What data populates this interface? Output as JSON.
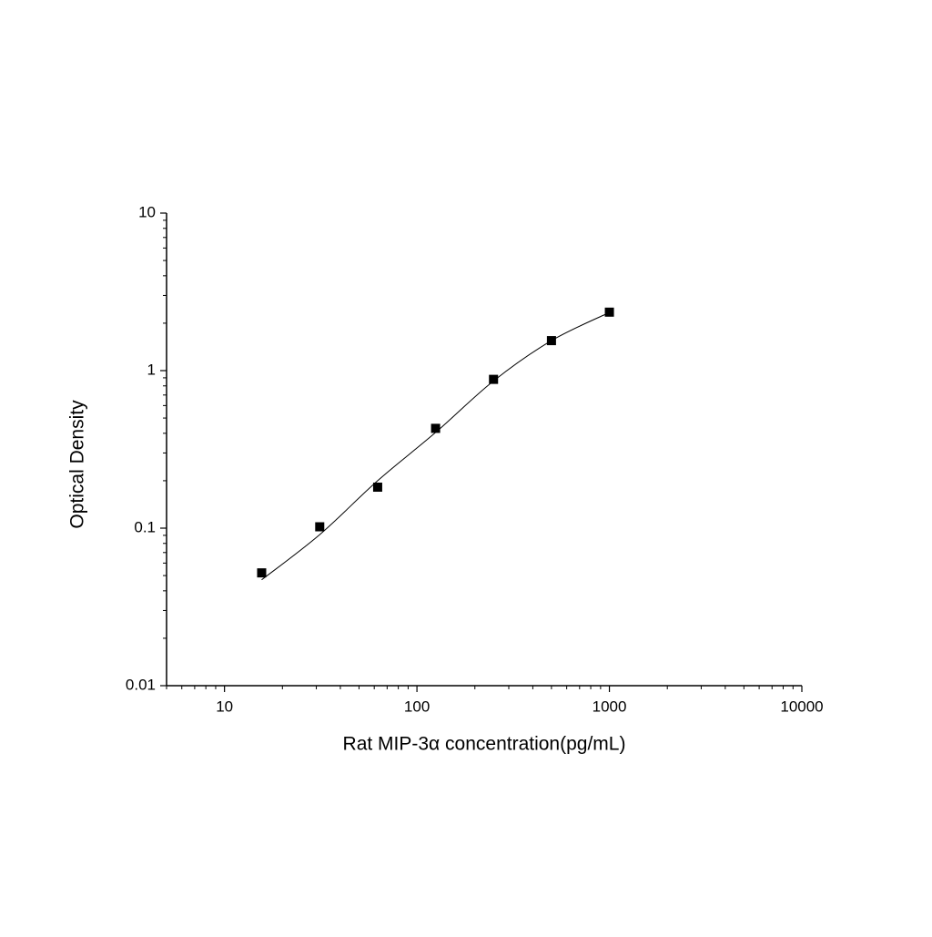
{
  "chart_data": {
    "type": "scatter",
    "xlabel": "Rat MIP-3α  concentration(pg/mL)",
    "ylabel": "Optical Density",
    "xscale": "log",
    "yscale": "log",
    "xlim": [
      5,
      10000
    ],
    "ylim": [
      0.01,
      10
    ],
    "xticks": [
      10,
      100,
      1000,
      10000
    ],
    "yticks": [
      0.01,
      0.1,
      1,
      10
    ],
    "xminorticks": [
      5,
      6,
      7,
      8,
      9,
      20,
      30,
      40,
      50,
      60,
      70,
      80,
      90,
      200,
      300,
      400,
      500,
      600,
      700,
      800,
      900,
      2000,
      3000,
      4000,
      5000,
      6000,
      7000,
      8000,
      9000
    ],
    "yminorticks": [
      0.02,
      0.03,
      0.04,
      0.05,
      0.06,
      0.07,
      0.08,
      0.09,
      0.2,
      0.3,
      0.4,
      0.5,
      0.6,
      0.7,
      0.8,
      0.9,
      2,
      3,
      4,
      5,
      6,
      7,
      8,
      9
    ],
    "series": [
      {
        "style": "marker",
        "marker": "square",
        "color": "#000000",
        "x": [
          15.6,
          31.25,
          62.5,
          125,
          250,
          500,
          1000
        ],
        "values": [
          0.052,
          0.102,
          0.182,
          0.43,
          0.88,
          1.55,
          2.35
        ]
      },
      {
        "style": "line",
        "color": "#000000",
        "x": [
          15.6,
          31.25,
          62.5,
          125,
          250,
          500,
          1000
        ],
        "values": [
          0.047,
          0.091,
          0.2,
          0.405,
          0.86,
          1.55,
          2.34
        ]
      }
    ]
  }
}
